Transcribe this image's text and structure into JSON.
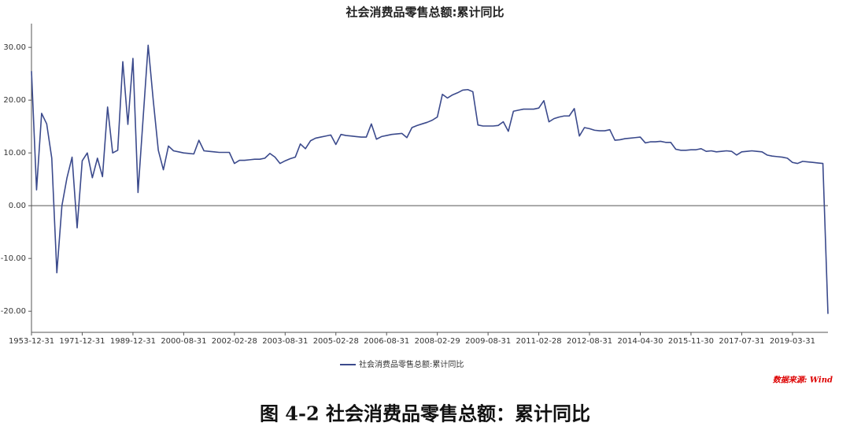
{
  "chart_data": {
    "type": "line",
    "title": "社会消费品零售总额:累计同比",
    "categories": [
      "1953-12-31",
      null,
      null,
      null,
      null,
      null,
      null,
      null,
      null,
      null,
      "1971-12-31",
      null,
      null,
      null,
      null,
      null,
      null,
      null,
      null,
      null,
      "1989-12-31",
      null,
      null,
      null,
      null,
      null,
      null,
      null,
      null,
      null,
      "2000-08-31",
      null,
      null,
      null,
      null,
      null,
      null,
      null,
      null,
      null,
      "2002-02-28",
      null,
      null,
      null,
      null,
      null,
      null,
      null,
      null,
      null,
      "2003-08-31",
      null,
      null,
      null,
      null,
      null,
      null,
      null,
      null,
      null,
      "2005-02-28",
      null,
      null,
      null,
      null,
      null,
      null,
      null,
      null,
      null,
      "2006-08-31",
      null,
      null,
      null,
      null,
      null,
      null,
      null,
      null,
      null,
      "2008-02-29",
      null,
      null,
      null,
      null,
      null,
      null,
      null,
      null,
      null,
      "2009-08-31",
      null,
      null,
      null,
      null,
      null,
      null,
      null,
      null,
      null,
      "2011-02-28",
      null,
      null,
      null,
      null,
      null,
      null,
      null,
      null,
      null,
      "2012-08-31",
      null,
      null,
      null,
      null,
      null,
      null,
      null,
      null,
      null,
      "2014-04-30",
      null,
      null,
      null,
      null,
      null,
      null,
      null,
      null,
      null,
      "2015-11-30",
      null,
      null,
      null,
      null,
      null,
      null,
      null,
      null,
      null,
      "2017-07-31",
      null,
      null,
      null,
      null,
      null,
      null,
      null,
      null,
      null,
      "2019-03-31",
      null,
      null,
      null,
      null,
      null,
      null,
      null
    ],
    "series": [
      {
        "name": "社会消费品零售总额:累计同比",
        "color": "#3b4a8c",
        "values": [
          25.5,
          3,
          17.5,
          15.5,
          9,
          -12.7,
          0,
          5.3,
          9.2,
          -4.2,
          8.5,
          10,
          5.3,
          9,
          5.5,
          18.7,
          10,
          10.5,
          27.3,
          15.4,
          27.9,
          2.5,
          16.5,
          30.4,
          20,
          10.5,
          6.8,
          11.3,
          10.4,
          10.2,
          10,
          9.9,
          9.8,
          12.4,
          10.4,
          10.3,
          10.2,
          10.1,
          10.1,
          10.1,
          8.0,
          8.6,
          8.6,
          8.7,
          8.8,
          8.8,
          9.0,
          9.9,
          9.2,
          8.0,
          8.5,
          8.9,
          9.2,
          11.7,
          10.8,
          12.3,
          12.8,
          13.0,
          13.2,
          13.4,
          11.6,
          13.5,
          13.3,
          13.2,
          13.1,
          13.0,
          13.0,
          15.5,
          12.6,
          13.1,
          13.3,
          13.5,
          13.6,
          13.7,
          12.9,
          14.8,
          15.2,
          15.5,
          15.8,
          16.2,
          16.8,
          21.1,
          20.4,
          21.0,
          21.4,
          21.9,
          22.0,
          21.6,
          15.3,
          15.1,
          15.1,
          15.1,
          15.2,
          15.9,
          14.1,
          17.9,
          18.1,
          18.3,
          18.3,
          18.3,
          18.5,
          19.9,
          15.9,
          16.5,
          16.8,
          17.0,
          17.0,
          18.4,
          13.2,
          14.8,
          14.6,
          14.3,
          14.2,
          14.2,
          14.4,
          12.4,
          12.5,
          12.7,
          12.8,
          12.9,
          13.0,
          11.9,
          12.1,
          12.1,
          12.2,
          12.0,
          12.0,
          10.7,
          10.5,
          10.5,
          10.6,
          10.6,
          10.8,
          10.3,
          10.4,
          10.2,
          10.3,
          10.4,
          10.3,
          9.6,
          10.2,
          10.3,
          10.4,
          10.3,
          10.2,
          9.6,
          9.4,
          9.3,
          9.2,
          9.0,
          8.2,
          8.0,
          8.4,
          8.3,
          8.2,
          8.1,
          8.0,
          -20.5
        ]
      }
    ],
    "ylim": [
      -24,
      34.5
    ],
    "yticks": [
      {
        "value": -20,
        "label": "-20.00"
      },
      {
        "value": -10,
        "label": "-10.00"
      },
      {
        "value": 0,
        "label": "0.00"
      },
      {
        "value": 10,
        "label": "10.00"
      },
      {
        "value": 20,
        "label": "20.00"
      },
      {
        "value": 30,
        "label": "30.00"
      }
    ],
    "legend": "bottom",
    "source": "数据来源: Wind"
  },
  "caption": "图 4-2 社会消费品零售总额：累计同比"
}
